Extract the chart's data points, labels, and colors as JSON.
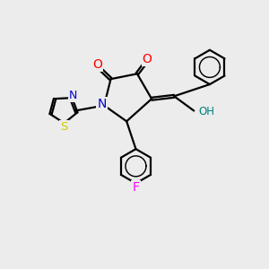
{
  "bg_color": "#ececec",
  "bond_color": "#000000",
  "atom_colors": {
    "O": "#ff0000",
    "N": "#0000cc",
    "S": "#cccc00",
    "F": "#ff00ff",
    "OH": "#008080",
    "C": "#000000"
  }
}
